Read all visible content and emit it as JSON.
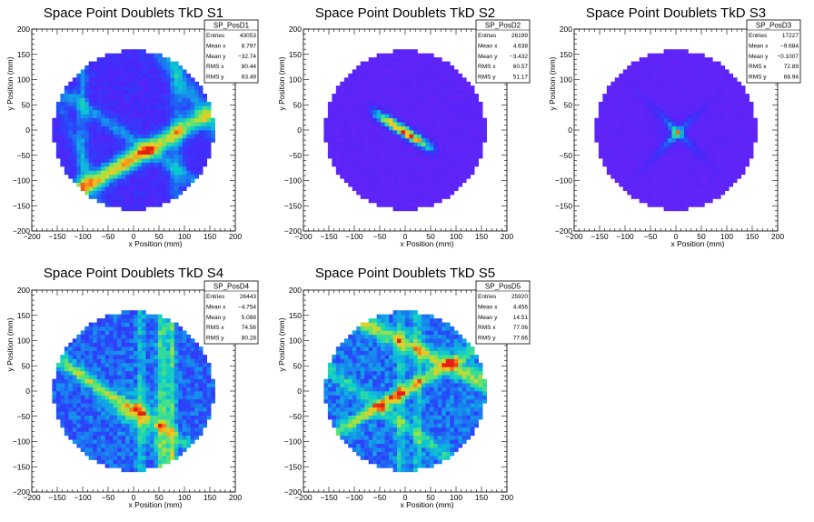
{
  "chart_data": [
    {
      "type": "heatmap",
      "title": "Space Point Doublets TkD S1",
      "xlabel": "x Position (mm)",
      "ylabel": "y Position (mm)",
      "xlim": [
        -200,
        200
      ],
      "ylim": [
        -200,
        200
      ],
      "xticks": [
        -200,
        -150,
        -100,
        -50,
        0,
        50,
        100,
        150,
        200
      ],
      "yticks": [
        -200,
        -150,
        -100,
        -50,
        0,
        50,
        100,
        150,
        200
      ],
      "stats": {
        "name": "SP_PosD1",
        "rows": [
          [
            "Entries",
            "43053"
          ],
          [
            "Mean x",
            "8.797"
          ],
          [
            "Mean y",
            "-32.74"
          ],
          [
            "RMS x",
            "80.44"
          ],
          [
            "RMS y",
            "63.49"
          ]
        ]
      }
    },
    {
      "type": "heatmap",
      "title": "Space Point Doublets TkD S2",
      "xlabel": "x Position (mm)",
      "ylabel": "y Position (mm)",
      "xlim": [
        -200,
        200
      ],
      "ylim": [
        -200,
        200
      ],
      "xticks": [
        -200,
        -150,
        -100,
        -50,
        0,
        50,
        100,
        150,
        200
      ],
      "yticks": [
        -200,
        -150,
        -100,
        -50,
        0,
        50,
        100,
        150,
        200
      ],
      "stats": {
        "name": "SP_PosD2",
        "rows": [
          [
            "Entries",
            "26199"
          ],
          [
            "Mean x",
            "4.638"
          ],
          [
            "Mean y",
            "-3.432"
          ],
          [
            "RMS x",
            "60.57"
          ],
          [
            "RMS y",
            "51.17"
          ]
        ]
      }
    },
    {
      "type": "heatmap",
      "title": "Space Point Doublets TkD S3",
      "xlabel": "x Position (mm)",
      "ylabel": "y Position (mm)",
      "xlim": [
        -200,
        200
      ],
      "ylim": [
        -200,
        200
      ],
      "xticks": [
        -200,
        -150,
        -100,
        -50,
        0,
        50,
        100,
        150,
        200
      ],
      "yticks": [
        -200,
        -150,
        -100,
        -50,
        0,
        50,
        100,
        150,
        200
      ],
      "stats": {
        "name": "SP_PosD3",
        "rows": [
          [
            "Entries",
            "17227"
          ],
          [
            "Mean x",
            "-9.684"
          ],
          [
            "Mean y",
            "-0.1007"
          ],
          [
            "RMS x",
            "72.89"
          ],
          [
            "RMS y",
            "68.94"
          ]
        ]
      }
    },
    {
      "type": "heatmap",
      "title": "Space Point Doublets TkD S4",
      "xlabel": "x Position (mm)",
      "ylabel": "y Position (mm)",
      "xlim": [
        -200,
        200
      ],
      "ylim": [
        -200,
        200
      ],
      "xticks": [
        -200,
        -150,
        -100,
        -50,
        0,
        50,
        100,
        150,
        200
      ],
      "yticks": [
        -200,
        -150,
        -100,
        -50,
        0,
        50,
        100,
        150,
        200
      ],
      "stats": {
        "name": "SP_PosD4",
        "rows": [
          [
            "Entries",
            "26443"
          ],
          [
            "Mean x",
            "-4.754"
          ],
          [
            "Mean y",
            "5.088"
          ],
          [
            "RMS x",
            "74.56"
          ],
          [
            "RMS y",
            "80.28"
          ]
        ]
      }
    },
    {
      "type": "heatmap",
      "title": "Space Point Doublets TkD S5",
      "xlabel": "x Position (mm)",
      "ylabel": "y Position (mm)",
      "xlim": [
        -200,
        200
      ],
      "ylim": [
        -200,
        200
      ],
      "xticks": [
        -200,
        -150,
        -100,
        -50,
        0,
        50,
        100,
        150,
        200
      ],
      "yticks": [
        -200,
        -150,
        -100,
        -50,
        0,
        50,
        100,
        150,
        200
      ],
      "stats": {
        "name": "SP_PosD5",
        "rows": [
          [
            "Entries",
            "25920"
          ],
          [
            "Mean x",
            "4.456"
          ],
          [
            "Mean y",
            "14.51"
          ],
          [
            "RMS x",
            "77.06"
          ],
          [
            "RMS y",
            "77.66"
          ]
        ]
      }
    }
  ]
}
